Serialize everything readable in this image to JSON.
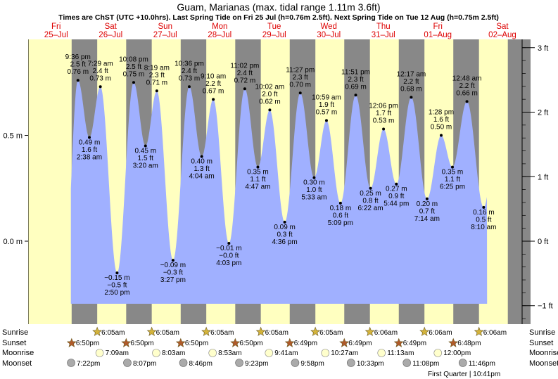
{
  "title": "Guam, Marianas (max. tidal range 1.11m 3.6ft)",
  "subtitle": "Times are ChST (UTC +10.0hrs). Last Spring Tide on Fri 25 Jul (h=0.76m 2.5ft). Next Spring Tide on Tue 12 Aug (h=0.75m 2.5ft)",
  "days": [
    {
      "name": "Fri",
      "date": "25–Jul"
    },
    {
      "name": "Sat",
      "date": "26–Jul"
    },
    {
      "name": "Sun",
      "date": "27–Jul"
    },
    {
      "name": "Mon",
      "date": "28–Jul"
    },
    {
      "name": "Tue",
      "date": "29–Jul"
    },
    {
      "name": "Wed",
      "date": "30–Jul"
    },
    {
      "name": "Thu",
      "date": "31–Jul"
    },
    {
      "name": "Fri",
      "date": "01–Aug"
    },
    {
      "name": "Sat",
      "date": "02–Aug"
    }
  ],
  "row_labels": {
    "sunrise": "Sunrise",
    "sunset": "Sunset",
    "moonrise": "Moonrise",
    "moonset": "Moonset"
  },
  "sunrise": [
    "6:05am",
    "6:05am",
    "6:05am",
    "6:05am",
    "6:05am",
    "6:06am",
    "6:06am",
    "6:06am"
  ],
  "sunset": [
    "6:50pm",
    "6:50pm",
    "6:50pm",
    "6:50pm",
    "6:49pm",
    "6:49pm",
    "6:49pm",
    "6:48pm"
  ],
  "moonrise": [
    "7:09am",
    "8:03am",
    "8:53am",
    "9:41am",
    "10:27am",
    "11:13am",
    "12:00pm"
  ],
  "moonset": [
    "7:22pm",
    "8:07pm",
    "8:46pm",
    "9:23pm",
    "9:58pm",
    "10:33pm",
    "11:08pm",
    "11:46pm"
  ],
  "moon_phase": "First Quarter | 10:41pm",
  "colors": {
    "day": "#ffffc0",
    "night": "#888888",
    "water": "#a0b0ff",
    "sun": "#d4b43c",
    "sunset": "#b05a2a",
    "moonrise": "#ffffcc",
    "moonset": "#aaaaaa"
  },
  "chart_data": {
    "type": "area",
    "ylabel_left_unit": "m",
    "ylabel_right_unit": "ft",
    "y_ticks_m": [
      "0.5 m",
      "0.0 m"
    ],
    "y_ticks_ft": [
      "3 ft",
      "2 ft",
      "1 ft",
      "0 ft",
      "−1 ft"
    ],
    "extremes": [
      {
        "time": "9:36 pm",
        "m": "0.76 m",
        "ft": "2.5 ft",
        "h": 0.76,
        "type": "high"
      },
      {
        "time": "2:38 am",
        "m": "0.49 m",
        "ft": "1.6 ft",
        "h": 0.49,
        "type": "low"
      },
      {
        "time": "7:29 am",
        "m": "0.73 m",
        "ft": "2.4 ft",
        "h": 0.73,
        "type": "high"
      },
      {
        "time": "2:50 pm",
        "m": "−0.15 m",
        "ft": "−0.5 ft",
        "h": -0.15,
        "type": "low"
      },
      {
        "time": "10:08 pm",
        "m": "0.75 m",
        "ft": "2.5 ft",
        "h": 0.75,
        "type": "high"
      },
      {
        "time": "3:20 am",
        "m": "0.45 m",
        "ft": "1.5 ft",
        "h": 0.45,
        "type": "low"
      },
      {
        "time": "8:19 am",
        "m": "0.71 m",
        "ft": "2.3 ft",
        "h": 0.71,
        "type": "high"
      },
      {
        "time": "3:27 pm",
        "m": "−0.09 m",
        "ft": "−0.3 ft",
        "h": -0.09,
        "type": "low"
      },
      {
        "time": "10:36 pm",
        "m": "0.73 m",
        "ft": "2.4 ft",
        "h": 0.73,
        "type": "high"
      },
      {
        "time": "4:04 am",
        "m": "0.40 m",
        "ft": "1.3 ft",
        "h": 0.4,
        "type": "low"
      },
      {
        "time": "9:10 am",
        "m": "0.67 m",
        "ft": "2.2 ft",
        "h": 0.67,
        "type": "high"
      },
      {
        "time": "4:03 pm",
        "m": "−0.01 m",
        "ft": "−0.0 ft",
        "h": -0.01,
        "type": "low"
      },
      {
        "time": "11:02 pm",
        "m": "0.72 m",
        "ft": "2.4 ft",
        "h": 0.72,
        "type": "high"
      },
      {
        "time": "4:47 am",
        "m": "0.35 m",
        "ft": "1.1 ft",
        "h": 0.35,
        "type": "low"
      },
      {
        "time": "10:02 am",
        "m": "0.62 m",
        "ft": "2.0 ft",
        "h": 0.62,
        "type": "high"
      },
      {
        "time": "4:36 pm",
        "m": "0.09 m",
        "ft": "0.3 ft",
        "h": 0.09,
        "type": "low"
      },
      {
        "time": "11:27 pm",
        "m": "0.70 m",
        "ft": "2.3 ft",
        "h": 0.7,
        "type": "high"
      },
      {
        "time": "5:33 am",
        "m": "0.30 m",
        "ft": "1.0 ft",
        "h": 0.3,
        "type": "low"
      },
      {
        "time": "10:59 am",
        "m": "0.57 m",
        "ft": "1.9 ft",
        "h": 0.57,
        "type": "high"
      },
      {
        "time": "5:09 pm",
        "m": "0.18 m",
        "ft": "0.6 ft",
        "h": 0.18,
        "type": "low"
      },
      {
        "time": "11:51 pm",
        "m": "0.69 m",
        "ft": "2.3 ft",
        "h": 0.69,
        "type": "high"
      },
      {
        "time": "6:22 am",
        "m": "0.25 m",
        "ft": "0.8 ft",
        "h": 0.25,
        "type": "low"
      },
      {
        "time": "12:06 pm",
        "m": "0.53 m",
        "ft": "1.7 ft",
        "h": 0.53,
        "type": "high"
      },
      {
        "time": "5:44 pm",
        "m": "0.27 m",
        "ft": "0.9 ft",
        "h": 0.27,
        "type": "low"
      },
      {
        "time": "12:17 am",
        "m": "0.68 m",
        "ft": "2.2 ft",
        "h": 0.68,
        "type": "high"
      },
      {
        "time": "7:14 am",
        "m": "0.20 m",
        "ft": "0.7 ft",
        "h": 0.2,
        "type": "low"
      },
      {
        "time": "1:28 pm",
        "m": "0.50 m",
        "ft": "1.6 ft",
        "h": 0.5,
        "type": "high"
      },
      {
        "time": "6:25 pm",
        "m": "0.35 m",
        "ft": "1.1 ft",
        "h": 0.35,
        "type": "low"
      },
      {
        "time": "12:48 am",
        "m": "0.66 m",
        "ft": "2.2 ft",
        "h": 0.66,
        "type": "high"
      },
      {
        "time": "8:10 am",
        "m": "0.16 m",
        "ft": "0.5 ft",
        "h": 0.16,
        "type": "low"
      }
    ]
  }
}
